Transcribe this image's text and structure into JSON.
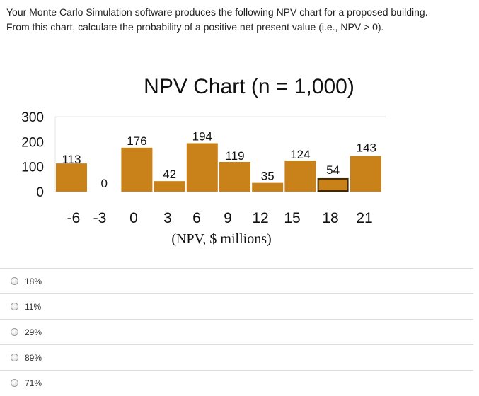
{
  "question": {
    "line1": "Your Monte Carlo Simulation software produces the following NPV chart for a proposed building.",
    "line2": "From this chart, calculate the probability of a positive net present value (i.e., NPV > 0)."
  },
  "chart_data": {
    "type": "bar",
    "title": "NPV Chart (n = 1,000)",
    "xlabel": "(NPV, $ millions)",
    "ylabel": "",
    "categories": [
      "-6",
      "-3",
      "0",
      "3",
      "6",
      "9",
      "12",
      "15",
      "18",
      "21"
    ],
    "values": [
      113,
      0,
      176,
      42,
      194,
      119,
      35,
      124,
      54,
      143
    ],
    "data_labels": [
      "113",
      "0",
      "176",
      "42",
      "194",
      "119",
      "35",
      "124",
      "54",
      "143"
    ],
    "yticks": [
      "0",
      "100",
      "200",
      "300"
    ],
    "ylim": [
      0,
      300
    ],
    "grid": false,
    "legend": "none",
    "bar_color": "#c9811a",
    "highlight_index": 8,
    "highlight_color": "#3d2a05"
  },
  "options": [
    {
      "label": "18%"
    },
    {
      "label": "11%"
    },
    {
      "label": "29%"
    },
    {
      "label": "89%"
    },
    {
      "label": "71%"
    }
  ]
}
